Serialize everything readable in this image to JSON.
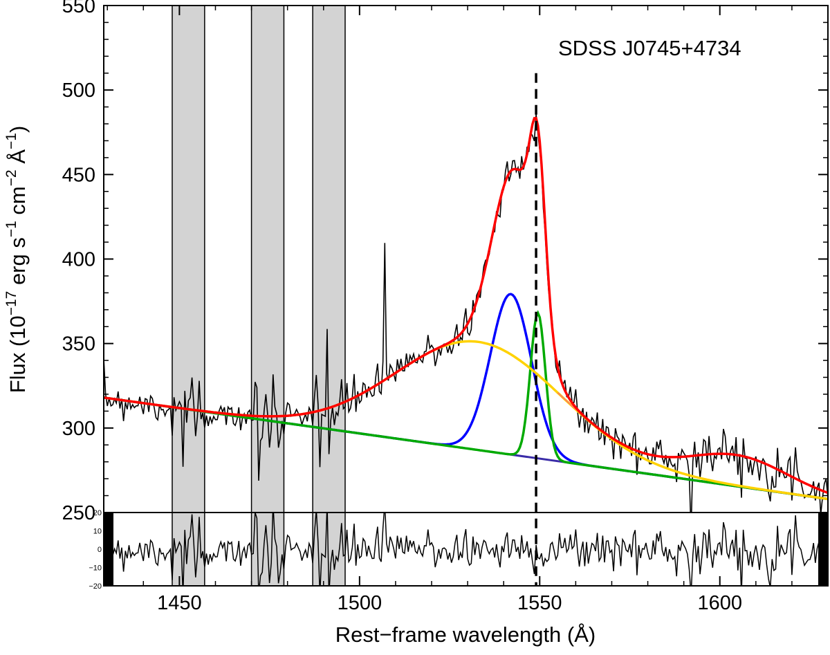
{
  "chart_data": {
    "type": "line",
    "annotation": "SDSS J0745+4734",
    "xlabel": "Rest−frame wavelength (Å)",
    "ylabel": {
      "prefix": "Flux (10",
      "exp1": "−17",
      "mid1": " erg s",
      "exp2": "−1",
      "mid2": " cm",
      "exp3": "−2",
      "mid3": " Å",
      "exp4": "−1",
      "suffix": ")"
    },
    "xlim": [
      1429,
      1630
    ],
    "ylim": [
      250,
      550
    ],
    "residual_ylim": [
      -20,
      20
    ],
    "x_ticks": [
      1450,
      1500,
      1550,
      1600
    ],
    "x_tick_labels": [
      "1450",
      "1500",
      "1550",
      "1600"
    ],
    "y_ticks": [
      250,
      300,
      350,
      400,
      450,
      500,
      550
    ],
    "y_tick_labels": [
      "250",
      "300",
      "350",
      "400",
      "450",
      "500",
      "550"
    ],
    "residual_ticks": [
      -20,
      -10,
      0,
      10,
      20
    ],
    "residual_tick_labels": [
      "−20",
      "−10",
      "0",
      "10",
      "20"
    ],
    "reference_line_x": 1549,
    "masked_regions": [
      [
        1448,
        1457
      ],
      [
        1470,
        1479
      ],
      [
        1487,
        1496
      ]
    ],
    "continuum": {
      "x": [
        1429,
        1630
      ],
      "y": [
        318,
        258
      ]
    },
    "components": [
      {
        "color": "#0000ff",
        "center": 1542,
        "amplitude": 95,
        "sigma": 5.7
      },
      {
        "color": "#00aa00",
        "center": 1549.5,
        "amplitude": 86,
        "sigma": 2.1
      },
      {
        "color": "#ffd200",
        "center": 1533,
        "amplitude": 64,
        "sigma": 23
      }
    ],
    "model_peak_extra": 25,
    "model_color": "#ff0000",
    "secondary_model_color": "#ff7070",
    "data_color": "#000000",
    "noise_seed": 7,
    "noise_level": 6
  }
}
